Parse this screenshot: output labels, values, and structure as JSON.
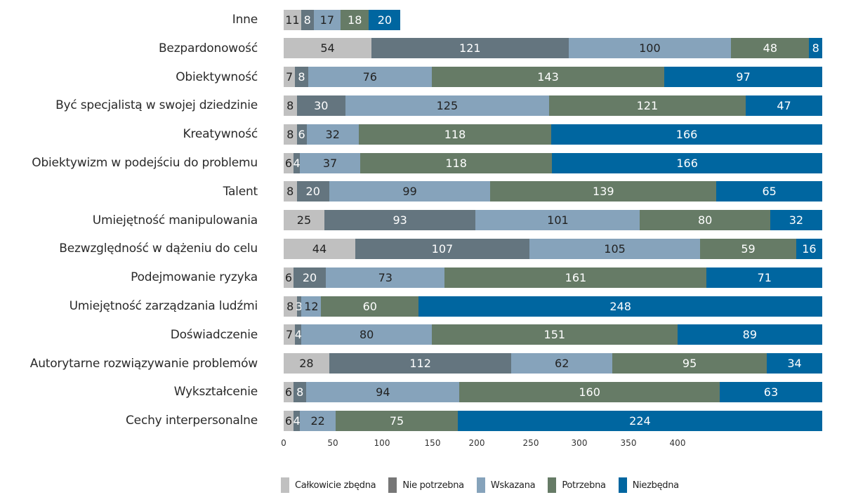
{
  "chart_data": {
    "type": "bar",
    "orientation": "horizontal",
    "stacked": true,
    "title": "",
    "xlabel": "",
    "ylabel": "",
    "xlim": [
      0,
      341
    ],
    "x_ticks": [
      "0",
      "50",
      "100",
      "150",
      "200",
      "250",
      "300",
      "350",
      "400"
    ],
    "grid": false,
    "legend_position": "bottom",
    "categories": [
      "Inne",
      "Bezpardonowość",
      "Obiektywność",
      "Być specjalistą w swojej dziedzinie",
      "Kreatywność",
      "Obiektywizm w podejściu do problemu",
      "Talent",
      "Umiejętność manipulowania",
      "Bezwzględność w dążeniu do celu",
      "Podejmowanie ryzyka",
      "Umiejętność zarządzania ludźmi",
      "Doświadczenie",
      "Autorytarne rozwiązywanie problemów",
      "Wykształcenie",
      "Cechy interpersonalne"
    ],
    "series": [
      {
        "name": "Całkowicie zbędna",
        "color": "#c0c0c0",
        "label_color": "#222222",
        "values": [
          11,
          54,
          7,
          8,
          8,
          6,
          8,
          25,
          44,
          6,
          8,
          7,
          28,
          6,
          6
        ]
      },
      {
        "name": "Nie potrzebna",
        "color": "#64757f",
        "label_color": "#ffffff",
        "values": [
          8,
          121,
          8,
          30,
          6,
          4,
          20,
          93,
          107,
          20,
          3,
          4,
          112,
          8,
          4
        ]
      },
      {
        "name": "Wskazana",
        "color": "#86a3bb",
        "label_color": "#222222",
        "values": [
          17,
          100,
          76,
          125,
          32,
          37,
          99,
          101,
          105,
          73,
          12,
          80,
          62,
          94,
          22
        ]
      },
      {
        "name": "Potrzebna",
        "color": "#667b66",
        "label_color": "#ffffff",
        "values": [
          18,
          48,
          143,
          121,
          118,
          118,
          139,
          80,
          59,
          161,
          60,
          151,
          95,
          160,
          75
        ]
      },
      {
        "name": "Niezbędna",
        "color": "#0066a0",
        "label_color": "#ffffff",
        "values": [
          20,
          8,
          97,
          47,
          166,
          166,
          65,
          32,
          16,
          71,
          248,
          89,
          34,
          63,
          224
        ]
      }
    ]
  },
  "legend": {
    "items": [
      {
        "label": "Całkowicie zbędna",
        "color": "#c0c0c0"
      },
      {
        "label": "Nie potrzebna",
        "color": "#777777"
      },
      {
        "label": "Wskazana",
        "color": "#86a3bb"
      },
      {
        "label": "Potrzebna",
        "color": "#667b66"
      },
      {
        "label": "Niezbędna",
        "color": "#0066a0"
      }
    ]
  }
}
